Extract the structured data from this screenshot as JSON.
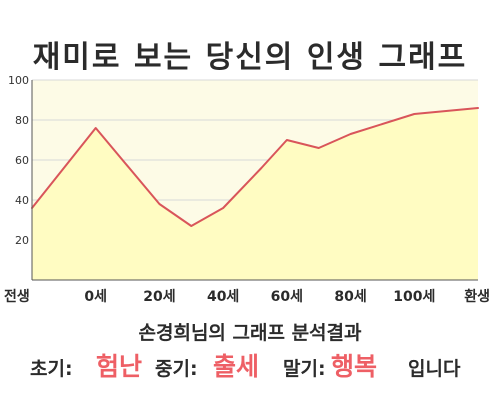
{
  "title": "재미로 보는 당신의 인생 그래프",
  "subtitle": "손경희님의 그래프 분석결과",
  "summary": {
    "early_label": "초기:",
    "early_value": "험난",
    "middle_label": "중기:",
    "middle_value": "출세",
    "late_label": "말기:",
    "late_value": "행복",
    "ending": "입니다"
  },
  "colors": {
    "line": "#d9555a",
    "fill": "#fffcc2",
    "plot_bg": "#fdfbe6",
    "grid": "#d8d8d8",
    "accent_text": "#ee5f65"
  },
  "chart_data": {
    "type": "area",
    "categories": [
      "전생",
      "0세",
      "20세",
      "40세",
      "60세",
      "80세",
      "100세",
      "환생"
    ],
    "points": [
      {
        "x": 0,
        "y": 36
      },
      {
        "x": 1,
        "y": 76
      },
      {
        "x": 2,
        "y": 38
      },
      {
        "x": 2.5,
        "y": 27
      },
      {
        "x": 3,
        "y": 36
      },
      {
        "x": 3.6,
        "y": 56
      },
      {
        "x": 4,
        "y": 70
      },
      {
        "x": 4.5,
        "y": 66
      },
      {
        "x": 5,
        "y": 73
      },
      {
        "x": 6,
        "y": 83
      },
      {
        "x": 7,
        "y": 86
      }
    ],
    "ylim": [
      0,
      100
    ],
    "yticks": [
      "20",
      "40",
      "60",
      "80",
      "100"
    ],
    "ytick_values": [
      20,
      40,
      60,
      80,
      100
    ],
    "grid": true,
    "legend": false
  }
}
